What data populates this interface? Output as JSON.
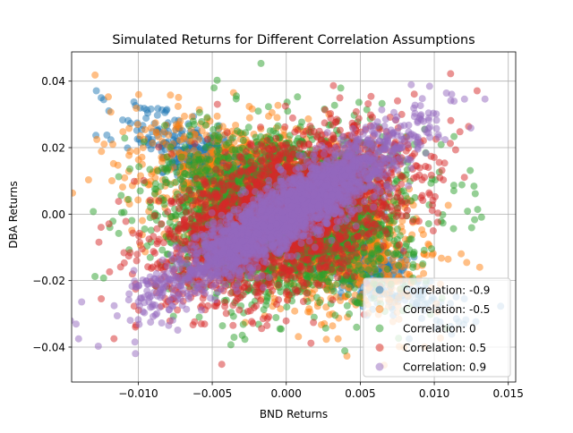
{
  "chart_data": {
    "type": "scatter",
    "title": "Simulated Returns for Different Correlation Assumptions",
    "xlabel": "BND Returns",
    "ylabel": "DBA Returns",
    "xlim": [
      -0.0145,
      0.0155
    ],
    "ylim": [
      -0.0505,
      0.0488
    ],
    "xticks": [
      -0.01,
      -0.005,
      0.0,
      0.005,
      0.01,
      0.015
    ],
    "xtick_labels": [
      "−0.010",
      "−0.005",
      "0.000",
      "0.005",
      "0.010",
      "0.015"
    ],
    "yticks": [
      -0.04,
      -0.02,
      0.0,
      0.02,
      0.04
    ],
    "ytick_labels": [
      "−0.04",
      "−0.02",
      "0.00",
      "0.02",
      "0.04"
    ],
    "grid": true,
    "legend_position": "lower-right",
    "marker_alpha": 0.5,
    "points_per_series": 10000,
    "series": [
      {
        "name": "Correlation: -0.9",
        "correlation": -0.9,
        "color": "#1f77b4",
        "x_mean": 0.0,
        "x_std": 0.004,
        "y_mean": 0.0,
        "y_std": 0.012
      },
      {
        "name": "Correlation: -0.5",
        "correlation": -0.5,
        "color": "#ff7f0e",
        "x_mean": 0.0,
        "x_std": 0.004,
        "y_mean": 0.0,
        "y_std": 0.012
      },
      {
        "name": "Correlation: 0",
        "correlation": 0.0,
        "color": "#2ca02c",
        "x_mean": 0.0,
        "x_std": 0.004,
        "y_mean": 0.0,
        "y_std": 0.012
      },
      {
        "name": "Correlation: 0.5",
        "correlation": 0.5,
        "color": "#d62728",
        "x_mean": 0.0,
        "x_std": 0.004,
        "y_mean": 0.0,
        "y_std": 0.012
      },
      {
        "name": "Correlation: 0.9",
        "correlation": 0.9,
        "color": "#9467bd",
        "x_mean": 0.0,
        "x_std": 0.004,
        "y_mean": 0.0,
        "y_std": 0.012
      }
    ]
  }
}
